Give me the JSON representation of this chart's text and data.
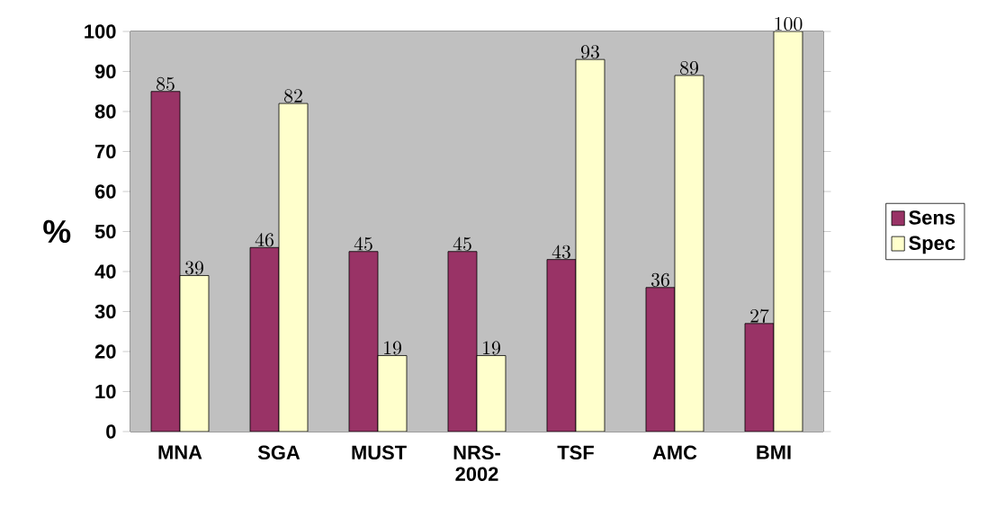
{
  "chart_data": {
    "type": "bar",
    "ylabel": "%",
    "categories": [
      "MNA",
      "SGA",
      "MUST",
      "NRS-2002",
      "TSF",
      "AMC",
      "BMI"
    ],
    "series": [
      {
        "name": "Sens",
        "color": "#993366",
        "values": [
          85,
          46,
          45,
          45,
          43,
          36,
          27
        ]
      },
      {
        "name": "Spec",
        "color": "#ffffcc",
        "values": [
          39,
          82,
          19,
          19,
          93,
          89,
          100
        ]
      }
    ],
    "ylim": [
      0,
      100
    ],
    "yticks": [
      0,
      10,
      20,
      30,
      40,
      50,
      60,
      70,
      80,
      90,
      100
    ],
    "data_labels": true,
    "legend": "right",
    "grid": false
  }
}
